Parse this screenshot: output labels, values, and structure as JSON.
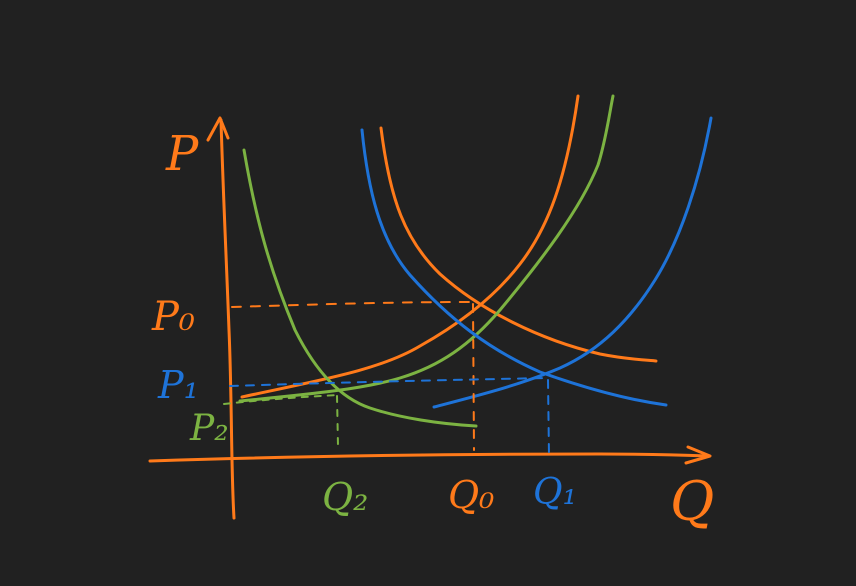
{
  "colors": {
    "background": "#212121",
    "orange": "#ff7a1a",
    "green": "#7cb342",
    "blue": "#1e73d8"
  },
  "labels": {
    "y_axis": "P",
    "x_axis": "Q",
    "p0": "P₀",
    "p1": "P₁",
    "p2": "P₂",
    "q0": "Q₀",
    "q1": "Q₁",
    "q2": "Q₂"
  }
}
